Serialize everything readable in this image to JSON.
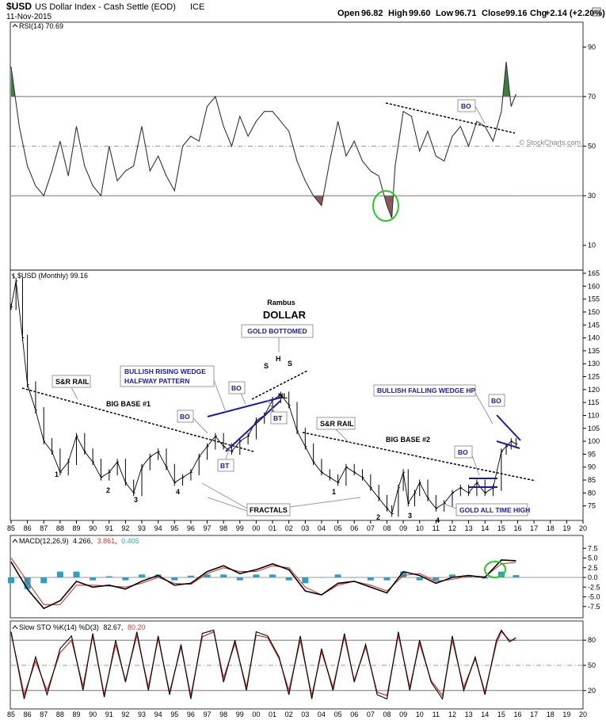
{
  "header": {
    "symbol": "$USD",
    "name": "US Dollar Index - Cash Settle (EOD)",
    "exchange": "ICE",
    "date": "11-Nov-2015",
    "ohlc": {
      "open_label": "Open",
      "open": "96.82",
      "high_label": "High",
      "high": "99.60",
      "low_label": "Low",
      "low": "96.71",
      "close_label": "Close",
      "close": "99.16",
      "chg_label": "Chg",
      "chg": "+2.14 (+2.20%)"
    },
    "watermark": "© StockCharts.com"
  },
  "colors": {
    "price": "#000000",
    "rsi_line": "#333333",
    "rsi_overbought_fill": "#3f7f3f",
    "rsi_oversold_fill": "#8a5a5a",
    "macd_line": "#000000",
    "macd_signal": "#d23a2e",
    "macd_hist": "#2e9fc4",
    "sto_k": "#000000",
    "sto_d": "#d23a2e",
    "trendline_black": "#000000",
    "trendline_blue": "#1a1aa6",
    "highlight_circle": "#22cc22"
  },
  "chart_data": [
    {
      "type": "line",
      "panel": "rsi",
      "legend": "RSI(14) 70.69",
      "ylim": [
        0,
        100
      ],
      "yticks": [
        10,
        30,
        50,
        70,
        90
      ],
      "reference_lines": [
        30,
        50,
        70
      ],
      "x": [
        1985.0,
        1985.5,
        1986.0,
        1986.5,
        1987.0,
        1987.5,
        1988.0,
        1988.5,
        1989.0,
        1989.5,
        1990.0,
        1990.5,
        1991.0,
        1991.5,
        1992.0,
        1992.5,
        1993.0,
        1993.5,
        1994.0,
        1994.5,
        1995.0,
        1995.5,
        1996.0,
        1996.5,
        1997.0,
        1997.5,
        1998.0,
        1998.5,
        1999.0,
        1999.5,
        2000.0,
        2000.5,
        2001.0,
        2001.5,
        2002.0,
        2002.5,
        2003.0,
        2003.5,
        2004.0,
        2004.5,
        2005.0,
        2005.5,
        2006.0,
        2006.5,
        2007.0,
        2007.5,
        2008.0,
        2008.3,
        2008.5,
        2009.0,
        2009.5,
        2010.0,
        2010.5,
        2011.0,
        2011.5,
        2012.0,
        2012.5,
        2013.0,
        2013.5,
        2014.0,
        2014.5,
        2015.0,
        2015.3,
        2015.6,
        2015.9
      ],
      "values": [
        82,
        58,
        42,
        34,
        30,
        40,
        52,
        38,
        58,
        42,
        34,
        30,
        50,
        36,
        40,
        42,
        58,
        40,
        46,
        38,
        32,
        50,
        54,
        52,
        66,
        70,
        58,
        50,
        62,
        54,
        60,
        64,
        64,
        60,
        56,
        44,
        36,
        30,
        26,
        44,
        60,
        46,
        52,
        44,
        40,
        38,
        26,
        21,
        42,
        64,
        62,
        48,
        56,
        46,
        44,
        54,
        58,
        50,
        60,
        58,
        52,
        64,
        84,
        66,
        71
      ]
    },
    {
      "type": "line",
      "panel": "price",
      "legend": "$USD (Monthly) 99.16",
      "ylim": [
        70,
        165
      ],
      "yticks": [
        75,
        80,
        85,
        90,
        95,
        100,
        105,
        110,
        115,
        120,
        125,
        130,
        135,
        140,
        145,
        150,
        155,
        160,
        165
      ],
      "xticks": [
        "85",
        "86",
        "87",
        "88",
        "89",
        "90",
        "91",
        "92",
        "93",
        "94",
        "95",
        "96",
        "97",
        "98",
        "99",
        "00",
        "01",
        "02",
        "03",
        "04",
        "05",
        "06",
        "07",
        "08",
        "09",
        "10",
        "11",
        "12",
        "13",
        "14",
        "15",
        "16",
        "17",
        "18",
        "19",
        "20"
      ],
      "x": [
        1985.0,
        1985.3,
        1985.7,
        1986.0,
        1986.5,
        1987.0,
        1987.5,
        1988.0,
        1988.5,
        1989.0,
        1989.5,
        1990.0,
        1990.5,
        1991.0,
        1991.5,
        1992.0,
        1992.5,
        1993.0,
        1993.5,
        1994.0,
        1994.5,
        1995.0,
        1995.5,
        1996.0,
        1996.5,
        1997.0,
        1997.5,
        1998.0,
        1998.5,
        1999.0,
        1999.5,
        2000.0,
        2000.5,
        2001.0,
        2001.5,
        2002.0,
        2002.5,
        2003.0,
        2003.5,
        2004.0,
        2004.5,
        2005.0,
        2005.5,
        2006.0,
        2006.5,
        2007.0,
        2007.5,
        2008.0,
        2008.3,
        2008.7,
        2009.0,
        2009.3,
        2009.7,
        2010.0,
        2010.5,
        2011.0,
        2011.5,
        2012.0,
        2012.5,
        2013.0,
        2013.5,
        2014.0,
        2014.5,
        2015.0,
        2015.3,
        2015.6,
        2015.9
      ],
      "values": [
        152,
        162,
        140,
        122,
        112,
        100,
        96,
        88,
        92,
        102,
        96,
        92,
        86,
        88,
        92,
        84,
        80,
        90,
        94,
        96,
        90,
        84,
        86,
        88,
        94,
        98,
        102,
        98,
        96,
        100,
        102,
        108,
        110,
        116,
        118,
        114,
        104,
        98,
        92,
        88,
        86,
        84,
        90,
        88,
        86,
        82,
        78,
        74,
        72,
        82,
        88,
        76,
        80,
        84,
        78,
        74,
        76,
        80,
        82,
        80,
        84,
        80,
        82,
        96,
        98,
        100,
        99
      ]
    },
    {
      "type": "line",
      "panel": "macd",
      "legend_prefix": "MACD(12,26,9)",
      "legend_macd": "4.266",
      "legend_signal": "3.861",
      "legend_hist": "0.405",
      "ylim": [
        -10,
        10
      ],
      "yticks": [
        "7.5",
        "5.0",
        "2.5",
        "0.0",
        "-2.5",
        "-5.0",
        "-7.5"
      ],
      "x": [
        1985.0,
        1986.0,
        1987.0,
        1988.0,
        1989.0,
        1990.0,
        1991.0,
        1992.0,
        1993.0,
        1994.0,
        1995.0,
        1996.0,
        1997.0,
        1998.0,
        1999.0,
        2000.0,
        2001.0,
        2002.0,
        2003.0,
        2004.0,
        2005.0,
        2006.0,
        2007.0,
        2008.0,
        2009.0,
        2010.0,
        2011.0,
        2012.0,
        2013.0,
        2014.0,
        2015.0,
        2015.9
      ],
      "series": [
        {
          "name": "MACD",
          "values": [
            4.0,
            -3.0,
            -8.0,
            -6.0,
            -1.0,
            -2.5,
            -2.0,
            -3.0,
            -1.0,
            0.5,
            -2.0,
            -1.5,
            1.5,
            3.0,
            1.0,
            2.0,
            3.5,
            2.0,
            -3.5,
            -4.5,
            -1.5,
            -1.0,
            -2.5,
            -4.0,
            1.5,
            0.5,
            -1.5,
            0.0,
            0.5,
            0.0,
            4.5,
            4.3
          ]
        },
        {
          "name": "Signal",
          "values": [
            5.0,
            -1.0,
            -7.0,
            -7.0,
            -2.0,
            -2.0,
            -2.2,
            -2.5,
            -1.5,
            0.0,
            -1.5,
            -1.8,
            1.0,
            2.5,
            1.5,
            1.5,
            3.0,
            2.5,
            -2.5,
            -4.5,
            -2.0,
            -1.0,
            -2.0,
            -3.5,
            0.5,
            1.0,
            -1.0,
            -0.5,
            0.3,
            0.2,
            3.5,
            3.9
          ]
        }
      ]
    },
    {
      "type": "line",
      "panel": "stochastic",
      "legend_prefix": "Slow STO %K(14) %D(3)",
      "legend_k": "82.67",
      "legend_d": "80.20",
      "ylim": [
        0,
        100
      ],
      "yticks": [
        20,
        50,
        80
      ],
      "x": [
        1985.0,
        1985.8,
        1986.5,
        1987.2,
        1988.0,
        1988.7,
        1989.4,
        1990.0,
        1990.7,
        1991.4,
        1992.0,
        1992.7,
        1993.4,
        1994.0,
        1994.7,
        1995.4,
        1996.0,
        1996.7,
        1997.4,
        1998.0,
        1998.7,
        1999.4,
        2000.0,
        2000.7,
        2001.4,
        2002.0,
        2002.7,
        2003.4,
        2004.0,
        2004.7,
        2005.4,
        2006.0,
        2006.7,
        2007.4,
        2008.0,
        2008.7,
        2009.4,
        2010.0,
        2010.7,
        2011.4,
        2012.0,
        2012.7,
        2013.4,
        2014.0,
        2014.7,
        2015.0,
        2015.5,
        2015.9
      ],
      "series": [
        {
          "name": "%K",
          "values": [
            90,
            10,
            60,
            15,
            70,
            85,
            20,
            88,
            12,
            80,
            30,
            90,
            20,
            85,
            15,
            75,
            10,
            88,
            92,
            30,
            80,
            20,
            90,
            85,
            60,
            15,
            85,
            10,
            70,
            20,
            88,
            30,
            75,
            15,
            10,
            90,
            20,
            80,
            30,
            10,
            85,
            20,
            60,
            15,
            80,
            92,
            78,
            83
          ]
        },
        {
          "name": "%D",
          "values": [
            88,
            15,
            55,
            20,
            65,
            80,
            25,
            85,
            15,
            75,
            32,
            86,
            24,
            82,
            18,
            72,
            14,
            84,
            90,
            35,
            76,
            24,
            86,
            83,
            58,
            20,
            80,
            14,
            66,
            24,
            84,
            32,
            72,
            18,
            14,
            86,
            24,
            76,
            32,
            14,
            80,
            24,
            58,
            18,
            76,
            90,
            80,
            80
          ]
        }
      ]
    }
  ],
  "annotations": {
    "title1": "Rambus",
    "title2": "DOLLAR",
    "gold_bottomed": "GOLD BOTTOMED",
    "bullish_rising_wedge_1": "BULLISH RISING WEDGE",
    "bullish_rising_wedge_2": "HALFWAY PATTERN",
    "bullish_falling_wedge": "BULLISH FALLING WEDGE HP",
    "gold_all_time_high": "GOLD ALL TIME HIGH",
    "sr_rail_left": "S&R RAIL",
    "sr_rail_right": "S&R RAIL",
    "big_base_1": "BIG BASE #1",
    "big_base_2": "BIG BASE #2",
    "fractals": "FRACTALS",
    "bo": "BO",
    "bt": "BT",
    "nl": "NL",
    "s": "S",
    "h": "H",
    "counts": [
      "1",
      "2",
      "3",
      "4",
      "1",
      "2",
      "3",
      "4"
    ]
  }
}
